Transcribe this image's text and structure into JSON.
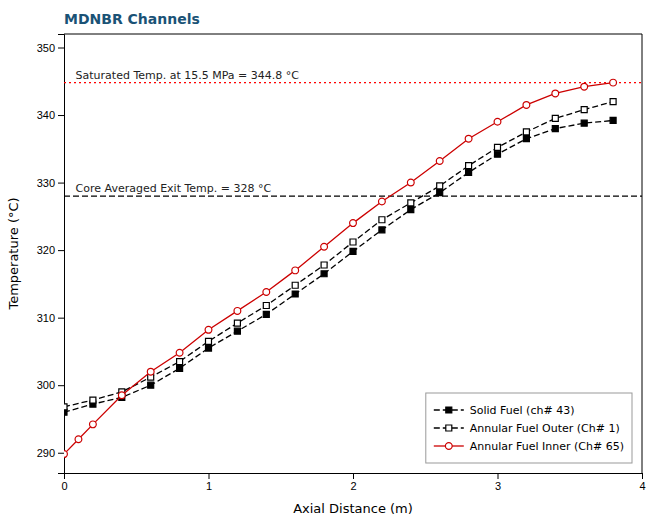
{
  "chart_data": {
    "type": "line",
    "title": "MDNBR Channels",
    "x_label": "Axial Distance (m)",
    "y_label": "Temperature (°C)",
    "xlim": [
      0,
      4
    ],
    "ylim": [
      287,
      352
    ],
    "xticks": [
      0,
      1,
      2,
      3,
      4
    ],
    "yticks": [
      290,
      300,
      310,
      320,
      330,
      340,
      350
    ],
    "grid": false,
    "legend": "lower right",
    "annotations": [
      {
        "text": "Saturated Temp. at 15.5 MPa = 344.8 °C",
        "y": 344.8,
        "color": "red",
        "line_style": "dotted"
      },
      {
        "text": "Core Averaged Exit Temp. = 328 °C",
        "y": 328,
        "color": "black",
        "line_style": "dashed"
      }
    ],
    "series": [
      {
        "name": "Solid Fuel (ch# 43)",
        "color": "#000000",
        "marker": "square",
        "line_style": "dashed",
        "x": [
          0.0,
          0.2,
          0.4,
          0.6,
          0.8,
          1.0,
          1.2,
          1.4,
          1.6,
          1.8,
          2.0,
          2.2,
          2.4,
          2.6,
          2.8,
          3.0,
          3.2,
          3.4,
          3.6,
          3.8
        ],
        "values": [
          296.0,
          297.2,
          298.2,
          300.0,
          302.5,
          305.5,
          308.0,
          310.5,
          313.5,
          316.5,
          319.8,
          323.0,
          326.0,
          328.5,
          331.5,
          334.2,
          336.5,
          338.0,
          338.8,
          339.2
        ]
      },
      {
        "name": "Annular Fuel Outer (Ch# 1)",
        "color": "#000000",
        "marker": "open-square",
        "line_style": "dashed",
        "x": [
          0.0,
          0.2,
          0.4,
          0.6,
          0.8,
          1.0,
          1.2,
          1.4,
          1.6,
          1.8,
          2.0,
          2.2,
          2.4,
          2.6,
          2.8,
          3.0,
          3.2,
          3.4,
          3.6,
          3.8
        ],
        "values": [
          296.8,
          297.8,
          299.0,
          301.2,
          303.5,
          306.5,
          309.2,
          311.8,
          314.8,
          317.8,
          321.2,
          324.5,
          327.0,
          329.5,
          332.5,
          335.2,
          337.5,
          339.5,
          340.8,
          342.0
        ]
      },
      {
        "name": "Annular Fuel Inner (Ch# 65)",
        "color": "#cc0000",
        "marker": "open-circle",
        "line_style": "solid",
        "x": [
          0.0,
          0.1,
          0.2,
          0.4,
          0.6,
          0.8,
          1.0,
          1.2,
          1.4,
          1.6,
          1.8,
          2.0,
          2.2,
          2.4,
          2.6,
          2.8,
          3.0,
          3.2,
          3.4,
          3.6,
          3.8
        ],
        "values": [
          289.8,
          292.0,
          294.2,
          298.5,
          302.0,
          304.8,
          308.2,
          311.0,
          313.8,
          317.0,
          320.5,
          324.0,
          327.2,
          330.0,
          333.2,
          336.5,
          339.0,
          341.5,
          343.2,
          344.2,
          344.8
        ]
      }
    ]
  }
}
